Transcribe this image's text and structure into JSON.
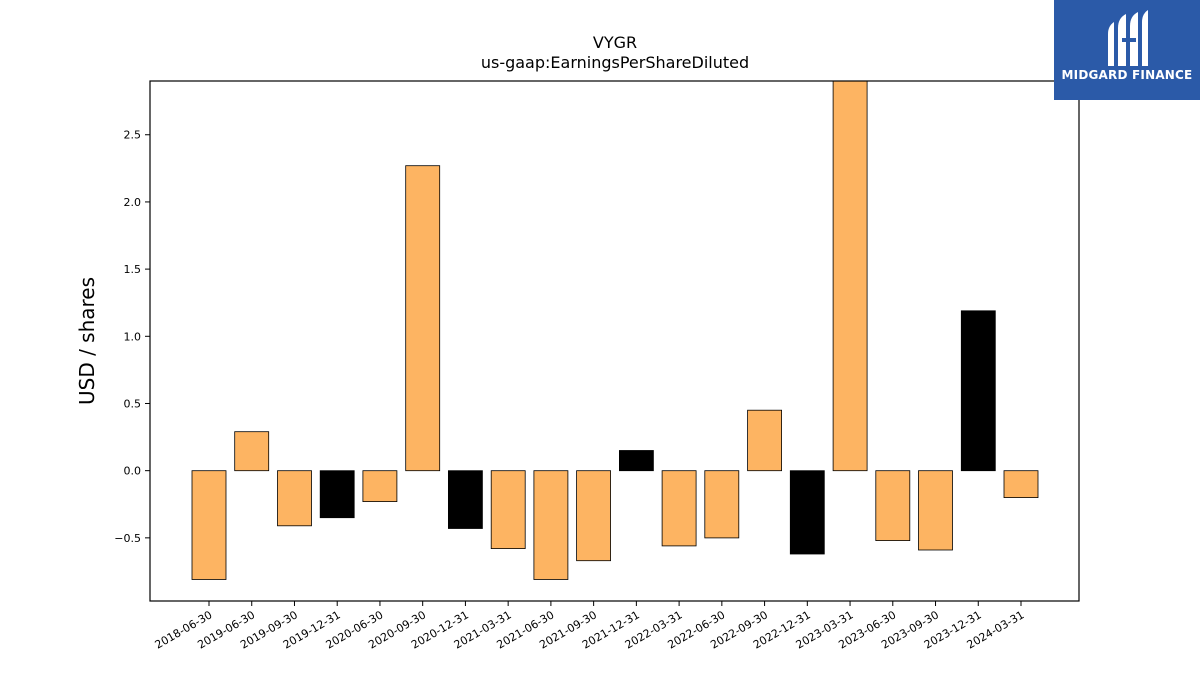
{
  "chart_data": {
    "type": "bar",
    "title": "VYGR",
    "subtitle": "us-gaap:EarningsPerShareDiluted",
    "xlabel": "",
    "ylabel": "USD / shares",
    "ylim": [
      -0.97,
      2.9
    ],
    "yticks": [
      -0.5,
      0.0,
      0.5,
      1.0,
      1.5,
      2.0,
      2.5
    ],
    "ytick_labels": [
      "−0.5",
      "0.0",
      "0.5",
      "1.0",
      "1.5",
      "2.0",
      "2.5"
    ],
    "categories": [
      "2018-06-30",
      "2019-06-30",
      "2019-09-30",
      "2019-12-31",
      "2020-06-30",
      "2020-09-30",
      "2020-12-31",
      "2021-03-31",
      "2021-06-30",
      "2021-09-30",
      "2021-12-31",
      "2022-03-31",
      "2022-06-30",
      "2022-09-30",
      "2022-12-31",
      "2023-03-31",
      "2023-06-30",
      "2023-09-30",
      "2023-12-31",
      "2024-03-31"
    ],
    "values": [
      -0.81,
      0.29,
      -0.41,
      -0.35,
      -0.23,
      2.27,
      -0.43,
      -0.58,
      -0.81,
      -0.67,
      0.15,
      -0.56,
      -0.5,
      0.45,
      -0.62,
      2.9,
      -0.52,
      -0.59,
      1.19,
      -0.2
    ],
    "bar_colors": [
      "#fdb462",
      "#fdb462",
      "#fdb462",
      "#000000",
      "#fdb462",
      "#fdb462",
      "#000000",
      "#fdb462",
      "#fdb462",
      "#fdb462",
      "#000000",
      "#fdb462",
      "#fdb462",
      "#fdb462",
      "#000000",
      "#fdb462",
      "#fdb462",
      "#fdb462",
      "#000000",
      "#fdb462"
    ],
    "grid": false,
    "legend": "none"
  },
  "logo": {
    "text": "MIDGARD FINANCE",
    "icon": "midgard-logo-icon",
    "color": "#2b5aa8"
  }
}
